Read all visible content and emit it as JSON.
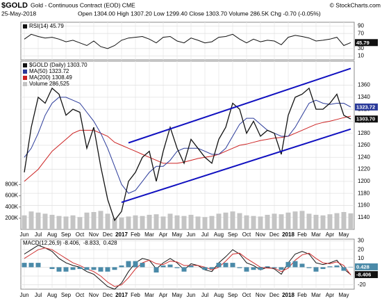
{
  "header": {
    "symbol": "$GOLD",
    "subtitle": "Gold - Continuous Contract (EOD) CME",
    "brand": "© StockCharts.com",
    "date": "25-May-2018",
    "stats": "Open 1304.00 High 1307.20 Low 1299.40 Close 1303.70 Volume 286.5K Chg -0.70 (-0.05%)"
  },
  "chart_data": [
    {
      "type": "line",
      "ylim": [
        0,
        100
      ],
      "yticks": [
        10,
        30,
        70,
        90
      ],
      "grid": true,
      "series": [
        {
          "name": "RSI(14) 45.79",
          "color": "#111111",
          "end_label": "45.79",
          "values": [
            55,
            68,
            62,
            58,
            60,
            55,
            48,
            52,
            45,
            38,
            50,
            35,
            30,
            38,
            52,
            58,
            60,
            62,
            55,
            45,
            60,
            62,
            50,
            45,
            58,
            52,
            45,
            48,
            60,
            62,
            68,
            55,
            45,
            55,
            48,
            52,
            50,
            40,
            60,
            65,
            62,
            58,
            50,
            52,
            55,
            60,
            38,
            45.79
          ]
        }
      ]
    },
    {
      "type": "line",
      "ylim": [
        1120,
        1400
      ],
      "yticks": [
        1140,
        1160,
        1180,
        1200,
        1220,
        1240,
        1260,
        1280,
        1300,
        1320,
        1340,
        1360
      ],
      "grid": true,
      "y2lim": [
        0,
        3000000
      ],
      "y2ticks": [
        {
          "value": 200000,
          "label": "200K"
        },
        {
          "value": 400000,
          "label": "400K"
        },
        {
          "value": 600000,
          "label": "600K"
        },
        {
          "value": 800000,
          "label": "800K"
        }
      ],
      "categories": [
        "Jun",
        null,
        "Jul",
        null,
        "Aug",
        null,
        "Sep",
        null,
        "Oct",
        null,
        "Nov",
        null,
        "Dec",
        null,
        "2017",
        null,
        "Feb",
        null,
        "Mar",
        null,
        "Apr",
        null,
        "May",
        null,
        "Jun",
        null,
        "Jul",
        null,
        "Aug",
        null,
        "Sep",
        null,
        "Oct",
        null,
        "Nov",
        null,
        "Dec",
        null,
        "2018",
        null,
        "Feb",
        null,
        "Mar",
        null,
        "Apr",
        null,
        "May",
        null
      ],
      "series": [
        {
          "name": "Volume 286,525",
          "type": "bar",
          "axis": "y2",
          "color": "#c4c4c4",
          "values": [
            250000,
            320000,
            300000,
            280000,
            260000,
            240000,
            230000,
            250000,
            220000,
            300000,
            310000,
            330000,
            280000,
            200000,
            210000,
            230000,
            250000,
            240000,
            260000,
            270000,
            230000,
            280000,
            250000,
            240000,
            260000,
            230000,
            220000,
            240000,
            280000,
            300000,
            320000,
            290000,
            250000,
            240000,
            230000,
            260000,
            280000,
            270000,
            300000,
            320000,
            330000,
            280000,
            260000,
            250000,
            270000,
            290000,
            310000,
            286525
          ]
        },
        {
          "name": "MA(200) 1308.49",
          "color": "#cc2222",
          "values": [
            1200,
            1210,
            1220,
            1235,
            1250,
            1260,
            1270,
            1280,
            1285,
            1285,
            1285,
            1280,
            1275,
            1265,
            1260,
            1255,
            1250,
            1245,
            1240,
            1235,
            1230,
            1230,
            1230,
            1232,
            1235,
            1238,
            1240,
            1242,
            1245,
            1250,
            1255,
            1260,
            1262,
            1265,
            1268,
            1270,
            1272,
            1273,
            1275,
            1280,
            1285,
            1290,
            1295,
            1298,
            1300,
            1303,
            1306,
            1308.49
          ]
        },
        {
          "name": "MA(50) 1323.72",
          "color": "#2a3a9a",
          "end_label": "1323.72",
          "values": [
            1240,
            1255,
            1280,
            1310,
            1330,
            1340,
            1340,
            1335,
            1330,
            1315,
            1300,
            1280,
            1255,
            1225,
            1195,
            1180,
            1185,
            1200,
            1215,
            1225,
            1225,
            1235,
            1250,
            1255,
            1255,
            1255,
            1250,
            1245,
            1245,
            1255,
            1275,
            1295,
            1305,
            1305,
            1295,
            1285,
            1280,
            1275,
            1275,
            1290,
            1310,
            1330,
            1335,
            1330,
            1328,
            1330,
            1330,
            1323.72
          ]
        },
        {
          "name": "$GOLD (Daily) 1303.70",
          "color": "#111111",
          "end_label": "1303.70",
          "values": [
            1215,
            1290,
            1340,
            1330,
            1355,
            1345,
            1310,
            1320,
            1315,
            1255,
            1290,
            1225,
            1170,
            1135,
            1150,
            1200,
            1215,
            1240,
            1250,
            1200,
            1250,
            1290,
            1255,
            1230,
            1270,
            1255,
            1240,
            1230,
            1270,
            1290,
            1330,
            1320,
            1280,
            1300,
            1275,
            1285,
            1280,
            1245,
            1310,
            1340,
            1345,
            1355,
            1320,
            1320,
            1330,
            1345,
            1310,
            1303.7
          ]
        }
      ],
      "trendlines": [
        {
          "color": "#1010c0",
          "x": [
            15,
            47
          ],
          "values": [
            1264,
            1388
          ]
        },
        {
          "color": "#1010c0",
          "x": [
            14,
            47
          ],
          "values": [
            1165,
            1287
          ]
        }
      ]
    },
    {
      "type": "line",
      "ylim": [
        -25,
        32
      ],
      "yticks": [
        -20,
        -10,
        0,
        10,
        20,
        30
      ],
      "grid": true,
      "categories": [
        "Jun",
        null,
        "Jul",
        null,
        "Aug",
        null,
        "Sep",
        null,
        "Oct",
        null,
        "Nov",
        null,
        "Dec",
        null,
        "2017",
        null,
        "Feb",
        null,
        "Mar",
        null,
        "Apr",
        null,
        "May",
        null,
        "Jun",
        null,
        "Jul",
        null,
        "Aug",
        null,
        "Sep",
        null,
        "Oct",
        null,
        "Nov",
        null,
        "Dec",
        null,
        "2018",
        null,
        "Feb",
        null,
        "Mar",
        null,
        "Apr",
        null,
        "May",
        null
      ],
      "series": [
        {
          "name": "MACD(12,26,9) -8.406,",
          "color": "#111111",
          "end_label": "-8.406",
          "values": [
            15,
            20,
            25,
            22,
            18,
            10,
            5,
            2,
            0,
            -5,
            -8,
            -15,
            -22,
            -25,
            -18,
            -5,
            5,
            10,
            8,
            -2,
            5,
            10,
            5,
            -3,
            4,
            2,
            -3,
            -5,
            5,
            12,
            20,
            15,
            5,
            2,
            -3,
            0,
            -2,
            -8,
            5,
            15,
            18,
            15,
            5,
            3,
            5,
            8,
            -2,
            -8.406
          ]
        },
        {
          "name": "-8.833,",
          "color": "#d03030",
          "values": [
            10,
            15,
            20,
            22,
            20,
            15,
            10,
            5,
            2,
            -2,
            -5,
            -10,
            -17,
            -22,
            -20,
            -12,
            -2,
            5,
            8,
            4,
            3,
            7,
            6,
            2,
            2,
            2,
            0,
            -3,
            0,
            7,
            15,
            16,
            10,
            5,
            0,
            -1,
            -1,
            -5,
            -1,
            8,
            14,
            16,
            10,
            5,
            4,
            6,
            2,
            -8.833
          ]
        },
        {
          "name": "0.428",
          "type": "bar",
          "color": "#4a8aa8",
          "end_label": "0.428",
          "values": [
            5,
            5,
            5,
            0,
            -2,
            -5,
            -5,
            -3,
            -2,
            -3,
            -3,
            -5,
            -5,
            -3,
            2,
            7,
            7,
            5,
            0,
            -6,
            2,
            3,
            -1,
            -5,
            2,
            0,
            -3,
            -2,
            5,
            5,
            5,
            -1,
            -5,
            -3,
            -3,
            1,
            -1,
            -3,
            6,
            7,
            4,
            -1,
            -5,
            -2,
            1,
            2,
            -4,
            0.428
          ]
        }
      ]
    }
  ]
}
